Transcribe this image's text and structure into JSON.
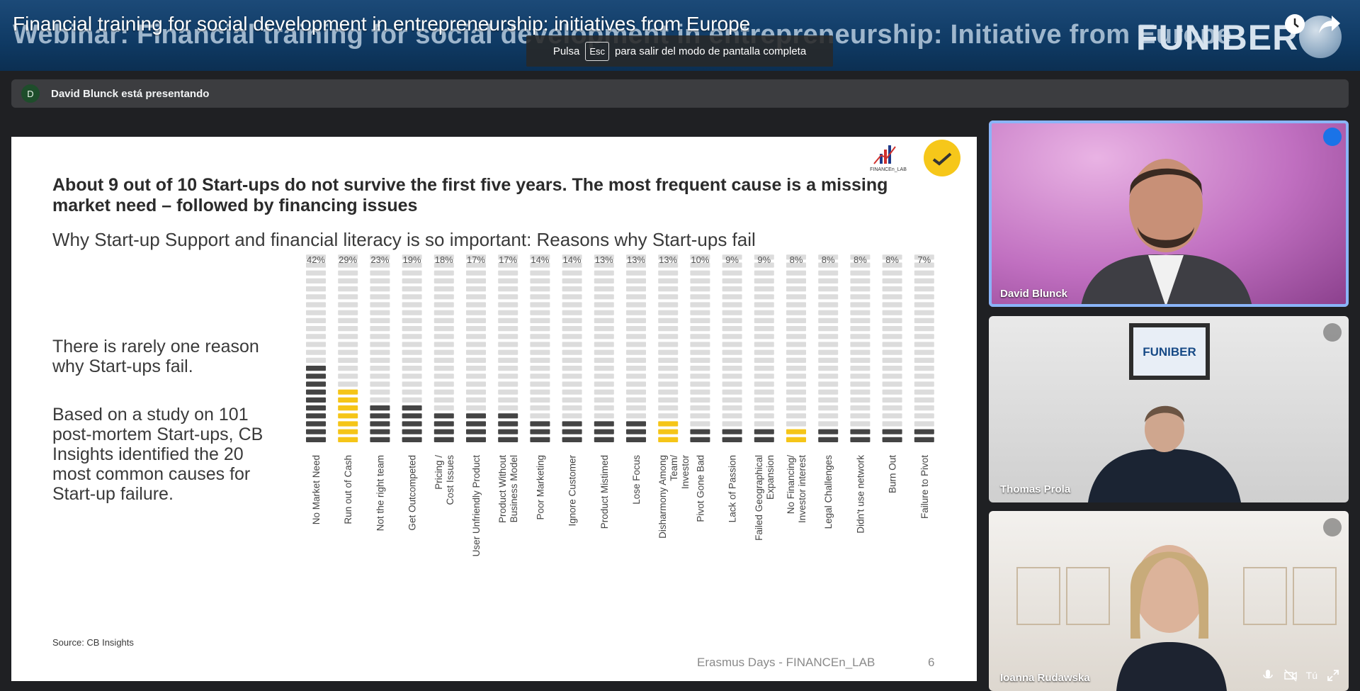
{
  "video": {
    "title": "Financial training for social development in entrepreneurship: initiatives from Europe"
  },
  "banner": {
    "title": "Webinar: Financial training for social development in entrepreneurship: Initiative from Europe",
    "brand": "FUNIBER"
  },
  "fullscreen_toast": {
    "before": "Pulsa",
    "key": "Esc",
    "after": "para salir del modo de pantalla completa"
  },
  "presenter": {
    "initial": "D",
    "text": "David Blunck está presentando"
  },
  "slide": {
    "headline": "About 9 out of 10 Start-ups do not survive the first five years. The most frequent cause is a missing market need – followed by financing issues",
    "subtitle": "Why Start-up Support and financial literacy is so important: Reasons why Start-ups fail",
    "side_text_1": "There is rarely one reason why Start-ups fail.",
    "side_text_2": "Based on a study on 101 post-mortem Start-ups, CB Insights identified the 20 most common causes for Start-up failure.",
    "source": "Source: CB Insights",
    "footer": "Erasmus Days - FINANCEn_LAB",
    "page": "6",
    "logo_text": "FINANCEn_LAB"
  },
  "chart_data": {
    "type": "bar",
    "categories": [
      "No Market Need",
      "Run out of Cash",
      "Not the right team",
      "Get Outcompeted",
      "Pricing / Cost Issues",
      "User Unfriendly Product",
      "Product Without Business Model",
      "Poor Marketing",
      "Ignore Customer",
      "Product Mistimed",
      "Lose Focus",
      "Disharmony Among Team/ Investor",
      "Pivot Gone Bad",
      "Lack of Passion",
      "Failed Geographical Expansion",
      "No Financing/ Investor interest",
      "Legal Challenges",
      "Didn't use network",
      "Burn Out",
      "Failure to Pivot"
    ],
    "values": [
      42,
      29,
      23,
      19,
      18,
      17,
      17,
      14,
      14,
      13,
      13,
      13,
      10,
      9,
      9,
      8,
      8,
      8,
      8,
      7
    ],
    "value_labels": [
      "42%",
      "29%",
      "23%",
      "19%",
      "18%",
      "17%",
      "17%",
      "14%",
      "14%",
      "13%",
      "13%",
      "13%",
      "10%",
      "9%",
      "9%",
      "8%",
      "8%",
      "8%",
      "8%",
      "7%"
    ],
    "highlighted": [
      false,
      true,
      false,
      false,
      false,
      false,
      false,
      false,
      false,
      false,
      false,
      true,
      false,
      false,
      false,
      true,
      false,
      false,
      false,
      false
    ],
    "colors": {
      "dark": "#444444",
      "highlight": "#f5c518",
      "empty": "#dcdcdc"
    }
  },
  "participants": [
    {
      "name": "David Blunck",
      "speaking": true
    },
    {
      "name": "Thomas Prola",
      "speaking": false
    },
    {
      "name": "Ioanna Rudawska",
      "speaking": false
    }
  ],
  "tile_controls": {
    "you_label": "Tú"
  }
}
